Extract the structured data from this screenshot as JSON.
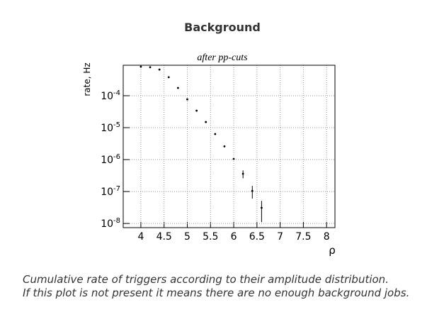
{
  "page": {
    "title": "Background",
    "caption": [
      "Cumulative rate of triggers according to their amplitude distribution.",
      "If this plot is not present it means there are no enough background jobs."
    ]
  },
  "chart_data": {
    "type": "scatter",
    "title": "after pp-cuts",
    "x_label": "ρ",
    "y_label": "rate, Hz",
    "x": [
      4.0,
      4.2,
      4.4,
      4.6,
      4.8,
      5.0,
      5.2,
      5.4,
      5.6,
      5.8,
      6.0,
      6.2,
      6.4,
      6.6
    ],
    "values": [
      0.00081,
      0.00078,
      0.00066,
      0.00038,
      0.000175,
      7.7e-05,
      3.4e-05,
      1.5e-05,
      6.3e-06,
      2.6e-06,
      1.05e-06,
      3.6e-07,
      1.05e-07,
      3.1e-08
    ],
    "errors": [
      null,
      null,
      null,
      null,
      null,
      null,
      null,
      null,
      null,
      null,
      null,
      1e-07,
      4.5e-08,
      2e-08
    ],
    "color": "#000000",
    "xlim": [
      3.62,
      8.18
    ],
    "xticks": [
      4,
      4.5,
      5,
      5.5,
      6,
      6.5,
      7,
      7.5,
      8
    ],
    "ylim": [
      7.4e-09,
      0.0009
    ],
    "log_y": true,
    "yticks": [
      {
        "value": 0.0001,
        "label": "10",
        "exponent": "-4"
      },
      {
        "value": 1e-05,
        "label": "10",
        "exponent": "-5"
      },
      {
        "value": 1e-06,
        "label": "10",
        "exponent": "-6"
      },
      {
        "value": 1e-07,
        "label": "10",
        "exponent": "-7"
      },
      {
        "value": 1e-08,
        "label": "10",
        "exponent": "-8"
      }
    ],
    "grid": true
  }
}
